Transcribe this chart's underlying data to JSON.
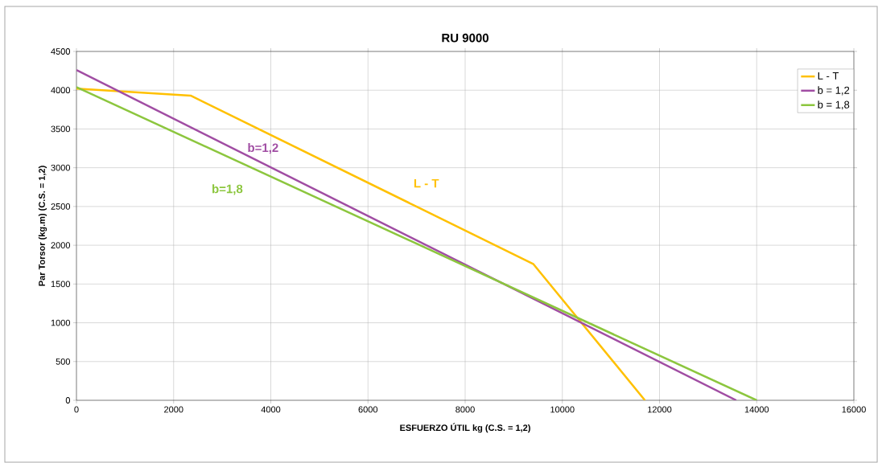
{
  "chart_data": {
    "type": "line",
    "title": "RU 9000",
    "xlabel": "ESFUERZO ÚTIL kg (C.S. = 1,2)",
    "ylabel": "Par Torsor (kg.m) (C.S. = 1,2)",
    "xlim": [
      0,
      16000
    ],
    "xticks": [
      0,
      2000,
      4000,
      6000,
      8000,
      10000,
      12000,
      14000,
      16000
    ],
    "ylim": [
      0,
      4500
    ],
    "yticks": [
      0,
      500,
      1000,
      1500,
      2000,
      2500,
      3000,
      3500,
      4000,
      4500
    ],
    "grid": true,
    "legend": "top right",
    "marker": "none",
    "line_style": "solid",
    "series": [
      {
        "name": "L - T",
        "color": "#ffc000",
        "x": [
          0,
          2350,
          9400,
          11700
        ],
        "values": [
          4020,
          3930,
          1760,
          0
        ]
      },
      {
        "name": "b = 1,2",
        "color": "#a04da3",
        "x": [
          0,
          13580
        ],
        "values": [
          4260,
          0
        ]
      },
      {
        "name": "b = 1,8",
        "color": "#8cc63e",
        "x": [
          0,
          14000
        ],
        "values": [
          4040,
          0
        ]
      }
    ],
    "annotations": [
      "L - T",
      "b=1,2",
      "b=1,8"
    ]
  }
}
